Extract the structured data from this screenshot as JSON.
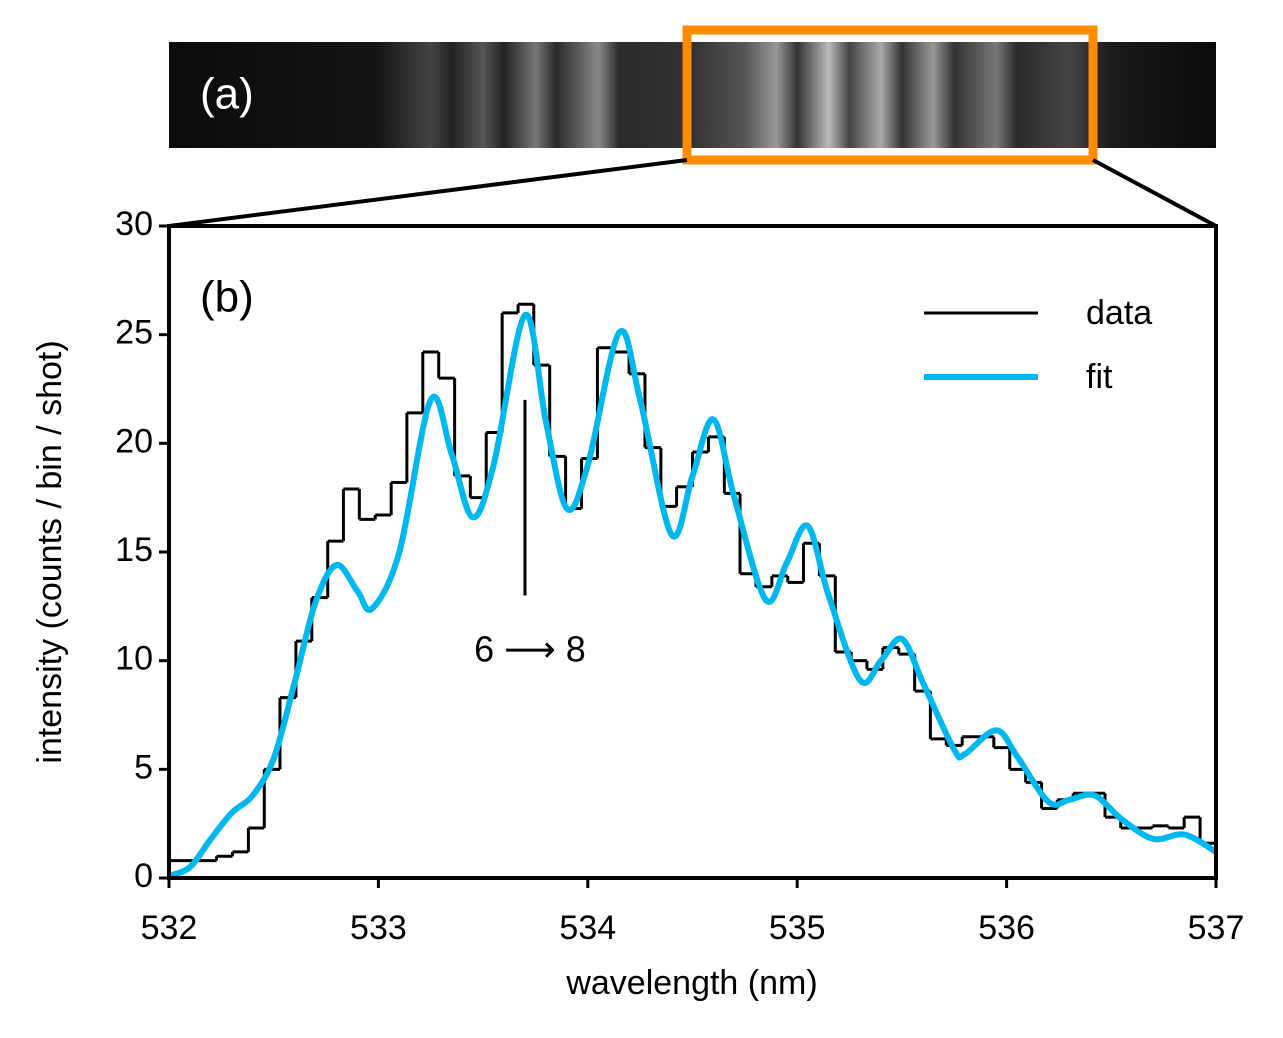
{
  "chart_data": {
    "type": "histogram",
    "panel_a_label": "(a)",
    "panel_b_label": "(b)",
    "xlabel": "wavelength (nm)",
    "ylabel": "intensity  (counts / bin / shot)",
    "xlim": [
      532,
      537
    ],
    "xticks": [
      532,
      533,
      534,
      535,
      536,
      537
    ],
    "ylim": [
      0,
      30
    ],
    "yticks": [
      0,
      5,
      10,
      15,
      20,
      25,
      30
    ],
    "legend": "upper right",
    "bins": [
      532.0,
      532.076,
      532.152,
      532.227,
      532.303,
      532.379,
      532.455,
      532.53,
      532.606,
      532.682,
      532.758,
      532.833,
      532.909,
      532.985,
      533.061,
      533.136,
      533.212,
      533.288,
      533.364,
      533.439,
      533.515,
      533.591,
      533.667,
      533.742,
      533.818,
      533.894,
      533.97,
      534.046,
      534.121,
      534.197,
      534.273,
      534.349,
      534.424,
      534.5,
      534.576,
      534.652,
      534.727,
      534.803,
      534.879,
      534.955,
      535.03,
      535.106,
      535.182,
      535.258,
      535.333,
      535.409,
      535.485,
      535.561,
      535.636,
      535.712,
      535.788,
      535.864,
      535.939,
      536.015,
      536.091,
      536.167,
      536.242,
      536.318,
      536.394,
      536.47,
      536.545,
      536.621,
      536.697,
      536.773,
      536.848,
      536.924,
      537.0
    ],
    "series": [
      {
        "name": "data",
        "color": "#000000",
        "values": [
          0.8,
          0.8,
          0.8,
          1.0,
          1.2,
          2.3,
          5.0,
          8.3,
          10.9,
          12.9,
          15.5,
          17.9,
          16.5,
          16.7,
          18.2,
          21.4,
          24.2,
          23.0,
          18.5,
          17.5,
          20.5,
          26.0,
          26.4,
          23.6,
          19.4,
          17.0,
          19.3,
          24.4,
          24.2,
          23.2,
          19.8,
          17.1,
          18.0,
          19.6,
          20.3,
          17.7,
          14.0,
          13.4,
          13.9,
          13.6,
          15.4,
          13.9,
          10.4,
          10.0,
          9.6,
          10.6,
          10.3,
          8.6,
          6.4,
          6.1,
          6.5,
          6.5,
          6.0,
          5.0,
          4.4,
          3.2,
          3.6,
          3.9,
          3.9,
          2.8,
          2.3,
          2.3,
          2.4,
          2.3,
          2.8,
          1.6
        ]
      },
      {
        "name": "fit",
        "color": "#00b8f0",
        "x": [
          532.0,
          532.1,
          532.2,
          532.3,
          532.4,
          532.5,
          532.6,
          532.7,
          532.8,
          532.9,
          532.97,
          533.1,
          533.25,
          533.35,
          533.45,
          533.55,
          533.7,
          533.8,
          533.9,
          534.0,
          534.15,
          534.25,
          534.4,
          534.5,
          534.6,
          534.7,
          534.85,
          534.95,
          535.05,
          535.15,
          535.3,
          535.4,
          535.5,
          535.6,
          535.75,
          535.8,
          535.95,
          536.05,
          536.2,
          536.3,
          536.42,
          536.55,
          536.7,
          536.85,
          537.0
        ],
        "values": [
          0.1,
          0.5,
          1.8,
          3.0,
          3.8,
          5.5,
          9.0,
          12.7,
          14.4,
          13.2,
          12.4,
          15.0,
          22.0,
          19.5,
          16.6,
          19.0,
          25.9,
          21.0,
          17.0,
          19.0,
          25.1,
          22.0,
          15.8,
          18.5,
          21.1,
          17.5,
          12.8,
          14.5,
          16.2,
          13.0,
          9.1,
          10.0,
          11.0,
          9.0,
          5.9,
          5.7,
          6.8,
          5.6,
          3.5,
          3.6,
          3.8,
          2.7,
          1.8,
          2.0,
          1.2
        ]
      }
    ],
    "annotation": {
      "text": "6 ⟶ 8",
      "x": 533.7,
      "y_range": [
        13,
        22
      ],
      "text_y": 10.4
    }
  }
}
